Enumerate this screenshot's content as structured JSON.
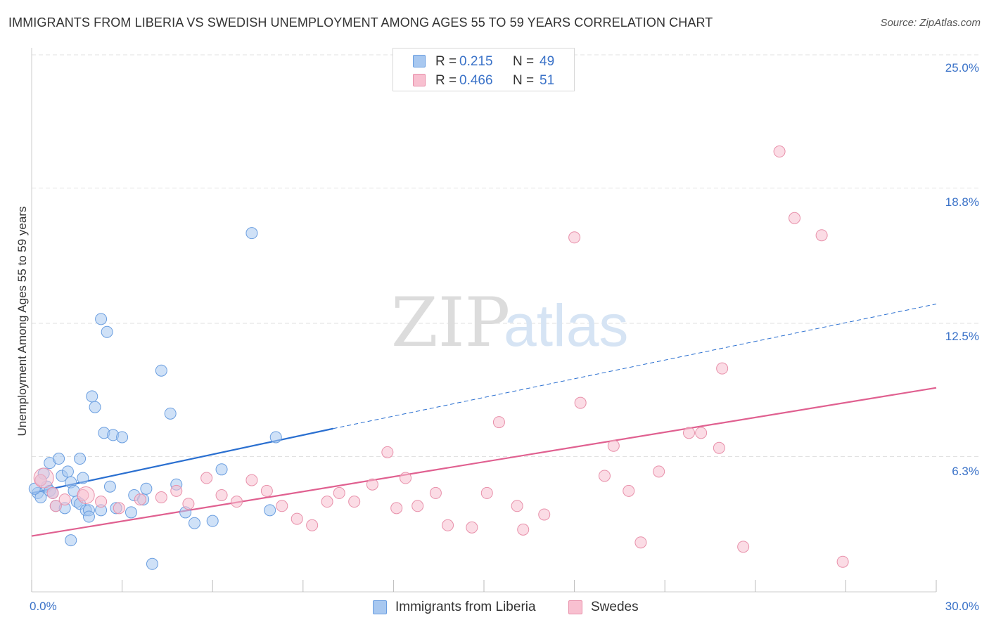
{
  "header": {
    "title": "IMMIGRANTS FROM LIBERIA VS SWEDISH UNEMPLOYMENT AMONG AGES 55 TO 59 YEARS CORRELATION CHART",
    "source": "Source: ZipAtlas.com"
  },
  "watermark": {
    "zip": "ZIP",
    "atlas": "atlas"
  },
  "legend_top": {
    "rows": [
      {
        "r_label": "R =",
        "r_value": "0.215",
        "n_label": "N =",
        "n_value": "49",
        "color": "#a8c8f0",
        "border": "#6a9ee0"
      },
      {
        "r_label": "R =",
        "r_value": "0.466",
        "n_label": "N =",
        "n_value": "51",
        "color": "#f8c0d0",
        "border": "#e890aa"
      }
    ]
  },
  "legend_bottom": {
    "items": [
      {
        "label": "Immigrants from Liberia",
        "color": "#a8c8f0",
        "border": "#6a9ee0"
      },
      {
        "label": "Swedes",
        "color": "#f8c0d0",
        "border": "#e890aa"
      }
    ]
  },
  "chart_data": {
    "type": "scatter",
    "title": "IMMIGRANTS FROM LIBERIA VS SWEDISH UNEMPLOYMENT AMONG AGES 55 TO 59 YEARS CORRELATION CHART",
    "xlabel": "",
    "ylabel": "Unemployment Among Ages 55 to 59 years",
    "xlim": [
      0,
      30
    ],
    "ylim": [
      0,
      25
    ],
    "x_tick_labels": [
      "0.0%",
      "30.0%"
    ],
    "y_ticks": [
      6.3,
      12.5,
      18.8,
      25.0
    ],
    "y_tick_labels": [
      "6.3%",
      "12.5%",
      "18.8%",
      "25.0%"
    ],
    "grid": "horizontal dashed",
    "series": [
      {
        "name": "Immigrants from Liberia",
        "color": "#a8c8f0",
        "stroke": "#6a9ee0",
        "line_color": "#2a6fd0",
        "trend": {
          "x0": 0,
          "y0": 4.6,
          "x1": 10,
          "y1": 7.6,
          "dashed_to": 30,
          "dashed_y": 13.4
        },
        "points": [
          [
            0.2,
            4.6
          ],
          [
            0.3,
            4.4
          ],
          [
            0.4,
            5.5
          ],
          [
            0.5,
            4.9
          ],
          [
            0.6,
            4.7
          ],
          [
            0.6,
            6.0
          ],
          [
            0.7,
            4.6
          ],
          [
            0.8,
            4.0
          ],
          [
            0.9,
            6.2
          ],
          [
            1.0,
            5.4
          ],
          [
            1.1,
            3.9
          ],
          [
            1.2,
            5.6
          ],
          [
            1.3,
            5.1
          ],
          [
            1.3,
            2.4
          ],
          [
            1.4,
            4.7
          ],
          [
            1.5,
            4.2
          ],
          [
            1.6,
            4.1
          ],
          [
            1.6,
            6.2
          ],
          [
            1.7,
            5.3
          ],
          [
            1.8,
            3.8
          ],
          [
            1.9,
            3.8
          ],
          [
            1.9,
            3.5
          ],
          [
            2.0,
            9.1
          ],
          [
            2.1,
            8.6
          ],
          [
            2.3,
            3.8
          ],
          [
            2.3,
            12.7
          ],
          [
            2.4,
            7.4
          ],
          [
            2.5,
            12.1
          ],
          [
            2.6,
            4.9
          ],
          [
            2.7,
            7.3
          ],
          [
            2.8,
            3.9
          ],
          [
            3.0,
            7.2
          ],
          [
            3.3,
            3.7
          ],
          [
            3.4,
            4.5
          ],
          [
            3.7,
            4.3
          ],
          [
            3.8,
            4.8
          ],
          [
            4.0,
            1.3
          ],
          [
            4.3,
            10.3
          ],
          [
            4.6,
            8.3
          ],
          [
            4.8,
            5.0
          ],
          [
            5.1,
            3.7
          ],
          [
            5.4,
            3.2
          ],
          [
            6.0,
            3.3
          ],
          [
            6.3,
            5.7
          ],
          [
            7.3,
            16.7
          ],
          [
            7.9,
            3.8
          ],
          [
            8.1,
            7.2
          ],
          [
            0.1,
            4.8
          ],
          [
            0.3,
            5.2
          ]
        ]
      },
      {
        "name": "Swedes",
        "color": "#f8c0d0",
        "stroke": "#e890aa",
        "line_color": "#e06090",
        "trend": {
          "x0": 0,
          "y0": 2.6,
          "x1": 30,
          "y1": 9.5
        },
        "points": [
          [
            0.3,
            5.2
          ],
          [
            0.7,
            4.6
          ],
          [
            0.8,
            4.0
          ],
          [
            1.1,
            4.3
          ],
          [
            1.7,
            4.5
          ],
          [
            2.3,
            4.2
          ],
          [
            2.9,
            3.9
          ],
          [
            3.6,
            4.3
          ],
          [
            4.3,
            4.4
          ],
          [
            4.8,
            4.7
          ],
          [
            5.2,
            4.1
          ],
          [
            5.8,
            5.3
          ],
          [
            6.3,
            4.5
          ],
          [
            6.8,
            4.2
          ],
          [
            7.3,
            5.2
          ],
          [
            7.8,
            4.7
          ],
          [
            8.3,
            4.0
          ],
          [
            8.8,
            3.4
          ],
          [
            9.3,
            3.1
          ],
          [
            9.8,
            4.2
          ],
          [
            10.2,
            4.6
          ],
          [
            10.7,
            4.2
          ],
          [
            11.3,
            5.0
          ],
          [
            11.8,
            6.5
          ],
          [
            12.1,
            3.9
          ],
          [
            12.4,
            5.3
          ],
          [
            12.8,
            4.0
          ],
          [
            13.4,
            4.6
          ],
          [
            13.8,
            3.1
          ],
          [
            14.6,
            3.0
          ],
          [
            15.1,
            4.6
          ],
          [
            15.5,
            7.9
          ],
          [
            16.1,
            4.0
          ],
          [
            16.3,
            2.9
          ],
          [
            17.0,
            3.6
          ],
          [
            18.0,
            16.5
          ],
          [
            18.2,
            8.8
          ],
          [
            19.0,
            5.4
          ],
          [
            19.3,
            6.8
          ],
          [
            19.8,
            4.7
          ],
          [
            20.2,
            2.3
          ],
          [
            20.8,
            5.6
          ],
          [
            21.8,
            7.4
          ],
          [
            22.2,
            7.4
          ],
          [
            22.8,
            6.7
          ],
          [
            22.9,
            10.4
          ],
          [
            23.6,
            2.1
          ],
          [
            24.8,
            20.5
          ],
          [
            25.3,
            17.4
          ],
          [
            26.2,
            16.6
          ],
          [
            26.9,
            1.4
          ]
        ]
      }
    ]
  }
}
